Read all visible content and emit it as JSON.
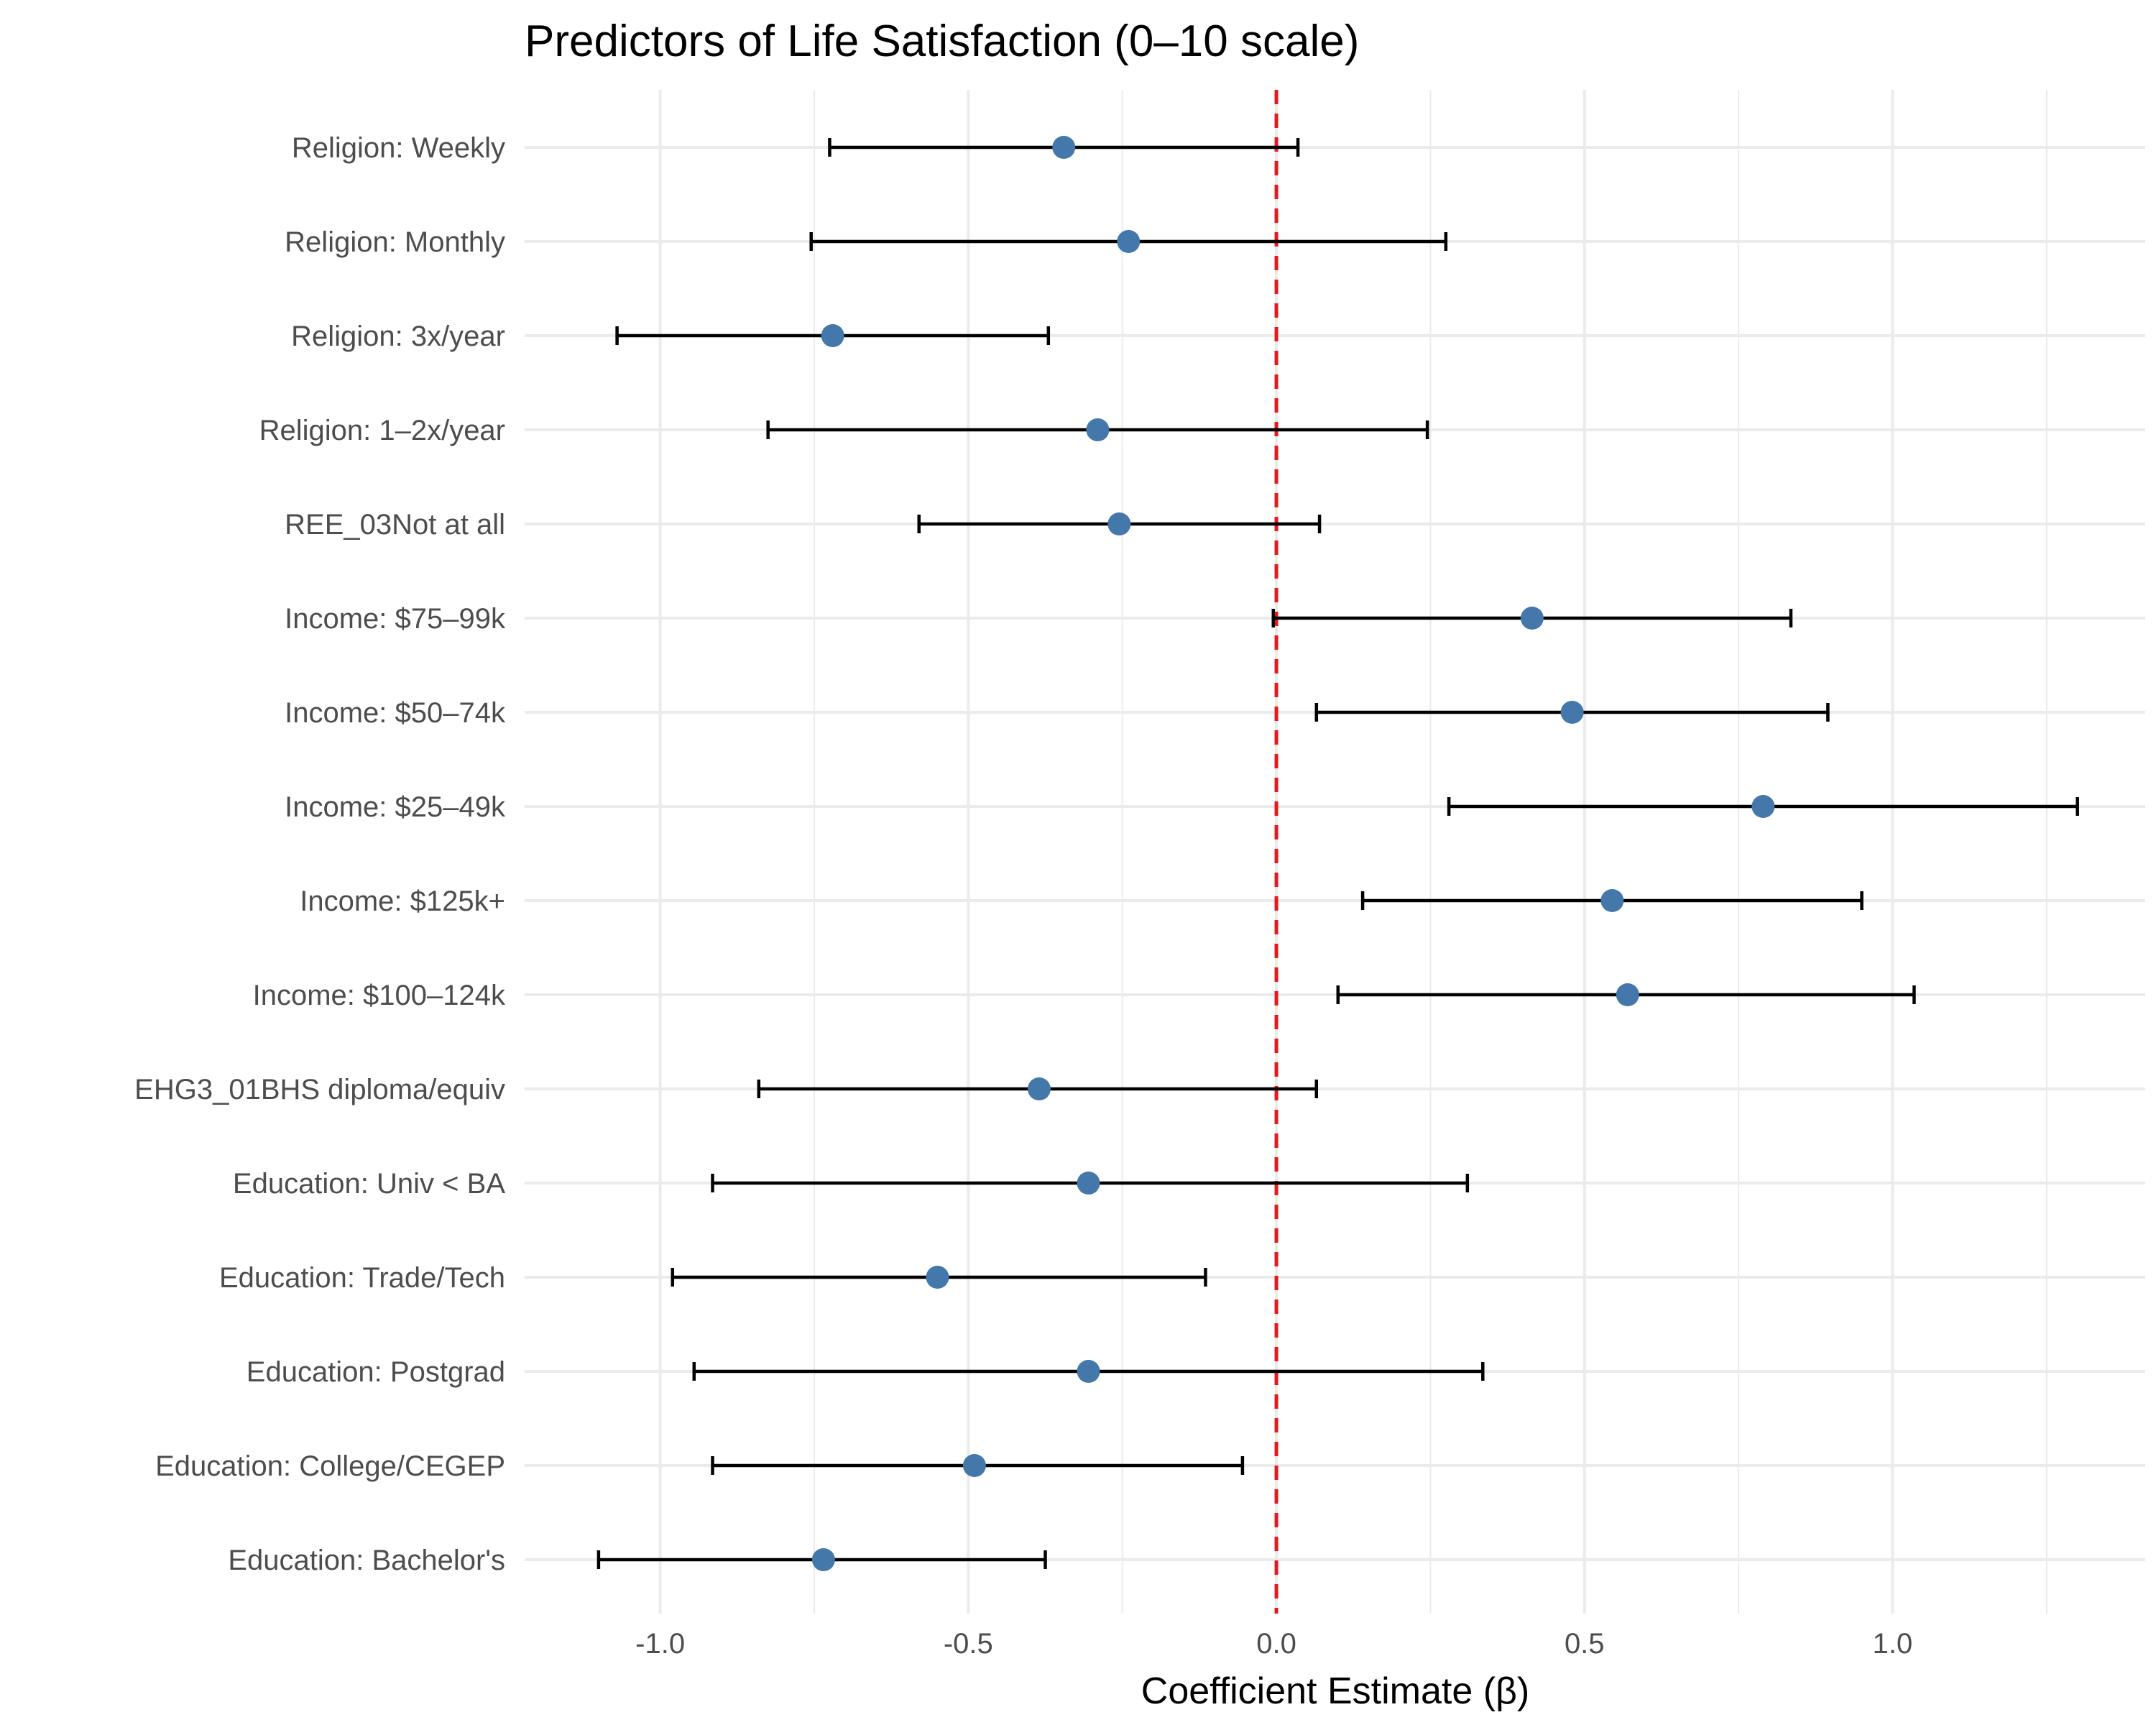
{
  "chart_data": {
    "type": "scatter",
    "title": "Predictors of Life Satisfaction (0–10 scale)",
    "xlabel": "Coefficient Estimate (β)",
    "ylabel": "",
    "xlim": [
      -1.22,
      1.41
    ],
    "xticks": [
      -1.0,
      -0.5,
      0.0,
      0.5,
      1.0
    ],
    "xtick_labels": [
      "-1.0",
      "-0.5",
      "0.0",
      "0.5",
      "1.0"
    ],
    "reference_line": {
      "x": 0,
      "style": "dashed",
      "color": "#e41a1c"
    },
    "grid": true,
    "point_color": "#4477aa",
    "error_bar_color": "#000000",
    "series": [
      {
        "term": "Religion: Weekly",
        "estimate": -0.345,
        "conf_low": -0.725,
        "conf_high": 0.035
      },
      {
        "term": "Religion: Monthly",
        "estimate": -0.24,
        "conf_low": -0.755,
        "conf_high": 0.275
      },
      {
        "term": "Religion: 3x/year",
        "estimate": -0.72,
        "conf_low": -1.07,
        "conf_high": -0.37
      },
      {
        "term": "Religion: 1–2x/year",
        "estimate": -0.29,
        "conf_low": -0.825,
        "conf_high": 0.245
      },
      {
        "term": "REE_03Not at all",
        "estimate": -0.255,
        "conf_low": -0.58,
        "conf_high": 0.07
      },
      {
        "term": "Income: $75–99k",
        "estimate": 0.415,
        "conf_low": -0.005,
        "conf_high": 0.835
      },
      {
        "term": "Income: $50–74k",
        "estimate": 0.48,
        "conf_low": 0.065,
        "conf_high": 0.895
      },
      {
        "term": "Income: $25–49k",
        "estimate": 0.79,
        "conf_low": 0.28,
        "conf_high": 1.3
      },
      {
        "term": "Income: $125k+",
        "estimate": 0.545,
        "conf_low": 0.14,
        "conf_high": 0.95
      },
      {
        "term": "Income: $100–124k",
        "estimate": 0.57,
        "conf_low": 0.1,
        "conf_high": 1.035
      },
      {
        "term": "EHG3_01BHS diploma/equiv",
        "estimate": -0.385,
        "conf_low": -0.84,
        "conf_high": 0.065
      },
      {
        "term": "Education: Univ < BA",
        "estimate": -0.305,
        "conf_low": -0.915,
        "conf_high": 0.31
      },
      {
        "term": "Education: Trade/Tech",
        "estimate": -0.55,
        "conf_low": -0.98,
        "conf_high": -0.115
      },
      {
        "term": "Education: Postgrad",
        "estimate": -0.305,
        "conf_low": -0.945,
        "conf_high": 0.335
      },
      {
        "term": "Education: College/CEGEP",
        "estimate": -0.49,
        "conf_low": -0.915,
        "conf_high": -0.055
      },
      {
        "term": "Education: Bachelor's",
        "estimate": -0.735,
        "conf_low": -1.1,
        "conf_high": -0.375
      }
    ]
  }
}
